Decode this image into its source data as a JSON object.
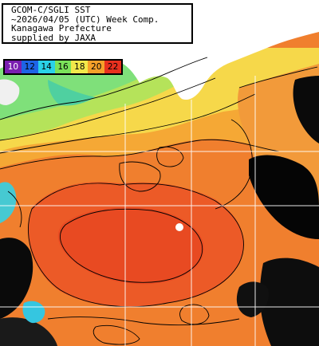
{
  "map_title": {
    "line1": "GCOM-C/SGLI SST",
    "line2": "~2026/04/05 (UTC) Week Comp.",
    "line3": "Kanagawa Prefecture",
    "line4": "supplied by JAXA"
  },
  "legend": {
    "items": [
      {
        "label": "10",
        "color": "#7a1fb0",
        "dark": true
      },
      {
        "label": "12",
        "color": "#1e64e6",
        "dark": false
      },
      {
        "label": "14",
        "color": "#2ad2e8",
        "dark": false
      },
      {
        "label": "16",
        "color": "#7be25a",
        "dark": false
      },
      {
        "label": "18",
        "color": "#f2e84a",
        "dark": false
      },
      {
        "label": "20",
        "color": "#f5a02a",
        "dark": false
      },
      {
        "label": "22",
        "color": "#e8301e",
        "dark": false
      }
    ]
  },
  "colors": {
    "land": "#ffffff",
    "graticule": "#ffffff",
    "contour": "#000000",
    "cloud": "#000000"
  }
}
